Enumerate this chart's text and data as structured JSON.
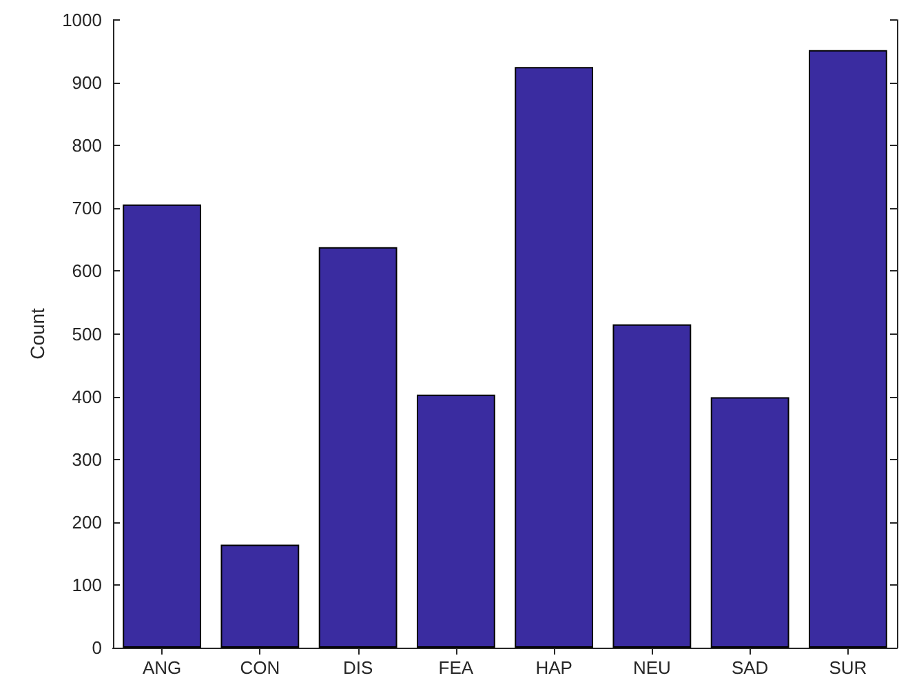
{
  "chart_data": {
    "type": "bar",
    "ylabel": "Count",
    "categories": [
      "ANG",
      "CON",
      "DIS",
      "FEA",
      "HAP",
      "NEU",
      "SAD",
      "SUR"
    ],
    "values": [
      706,
      164,
      638,
      403,
      925,
      515,
      399,
      952
    ],
    "color": "#3a2ca0",
    "ylim": [
      0,
      1000
    ],
    "yticks": [
      0,
      100,
      200,
      300,
      400,
      500,
      600,
      700,
      800,
      900,
      1000
    ],
    "grid": false
  }
}
